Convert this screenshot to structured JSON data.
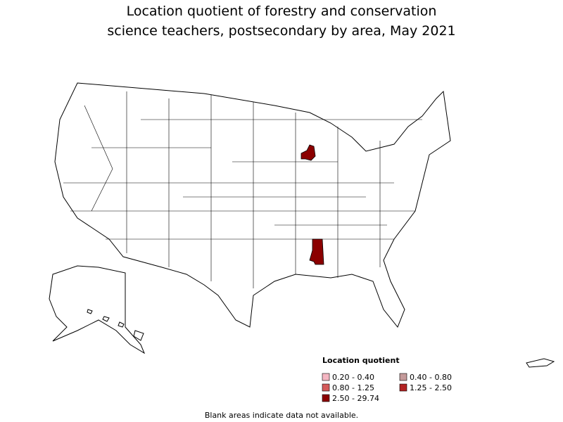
{
  "title": [
    "Location quotient of forestry and conservation",
    "science teachers, postsecondary by area, May 2021"
  ],
  "legend": {
    "title": "Location quotient",
    "items": [
      {
        "label": "0.20 - 0.40",
        "color": "#f4b6c2"
      },
      {
        "label": "0.40 - 0.80",
        "color": "#c49a9a"
      },
      {
        "label": "0.80 - 1.25",
        "color": "#d45a5a"
      },
      {
        "label": "1.25 - 2.50",
        "color": "#b22222"
      },
      {
        "label": "2.50 - 29.74",
        "color": "#8b0000"
      }
    ]
  },
  "footnote": "Blank areas indicate data not available."
}
